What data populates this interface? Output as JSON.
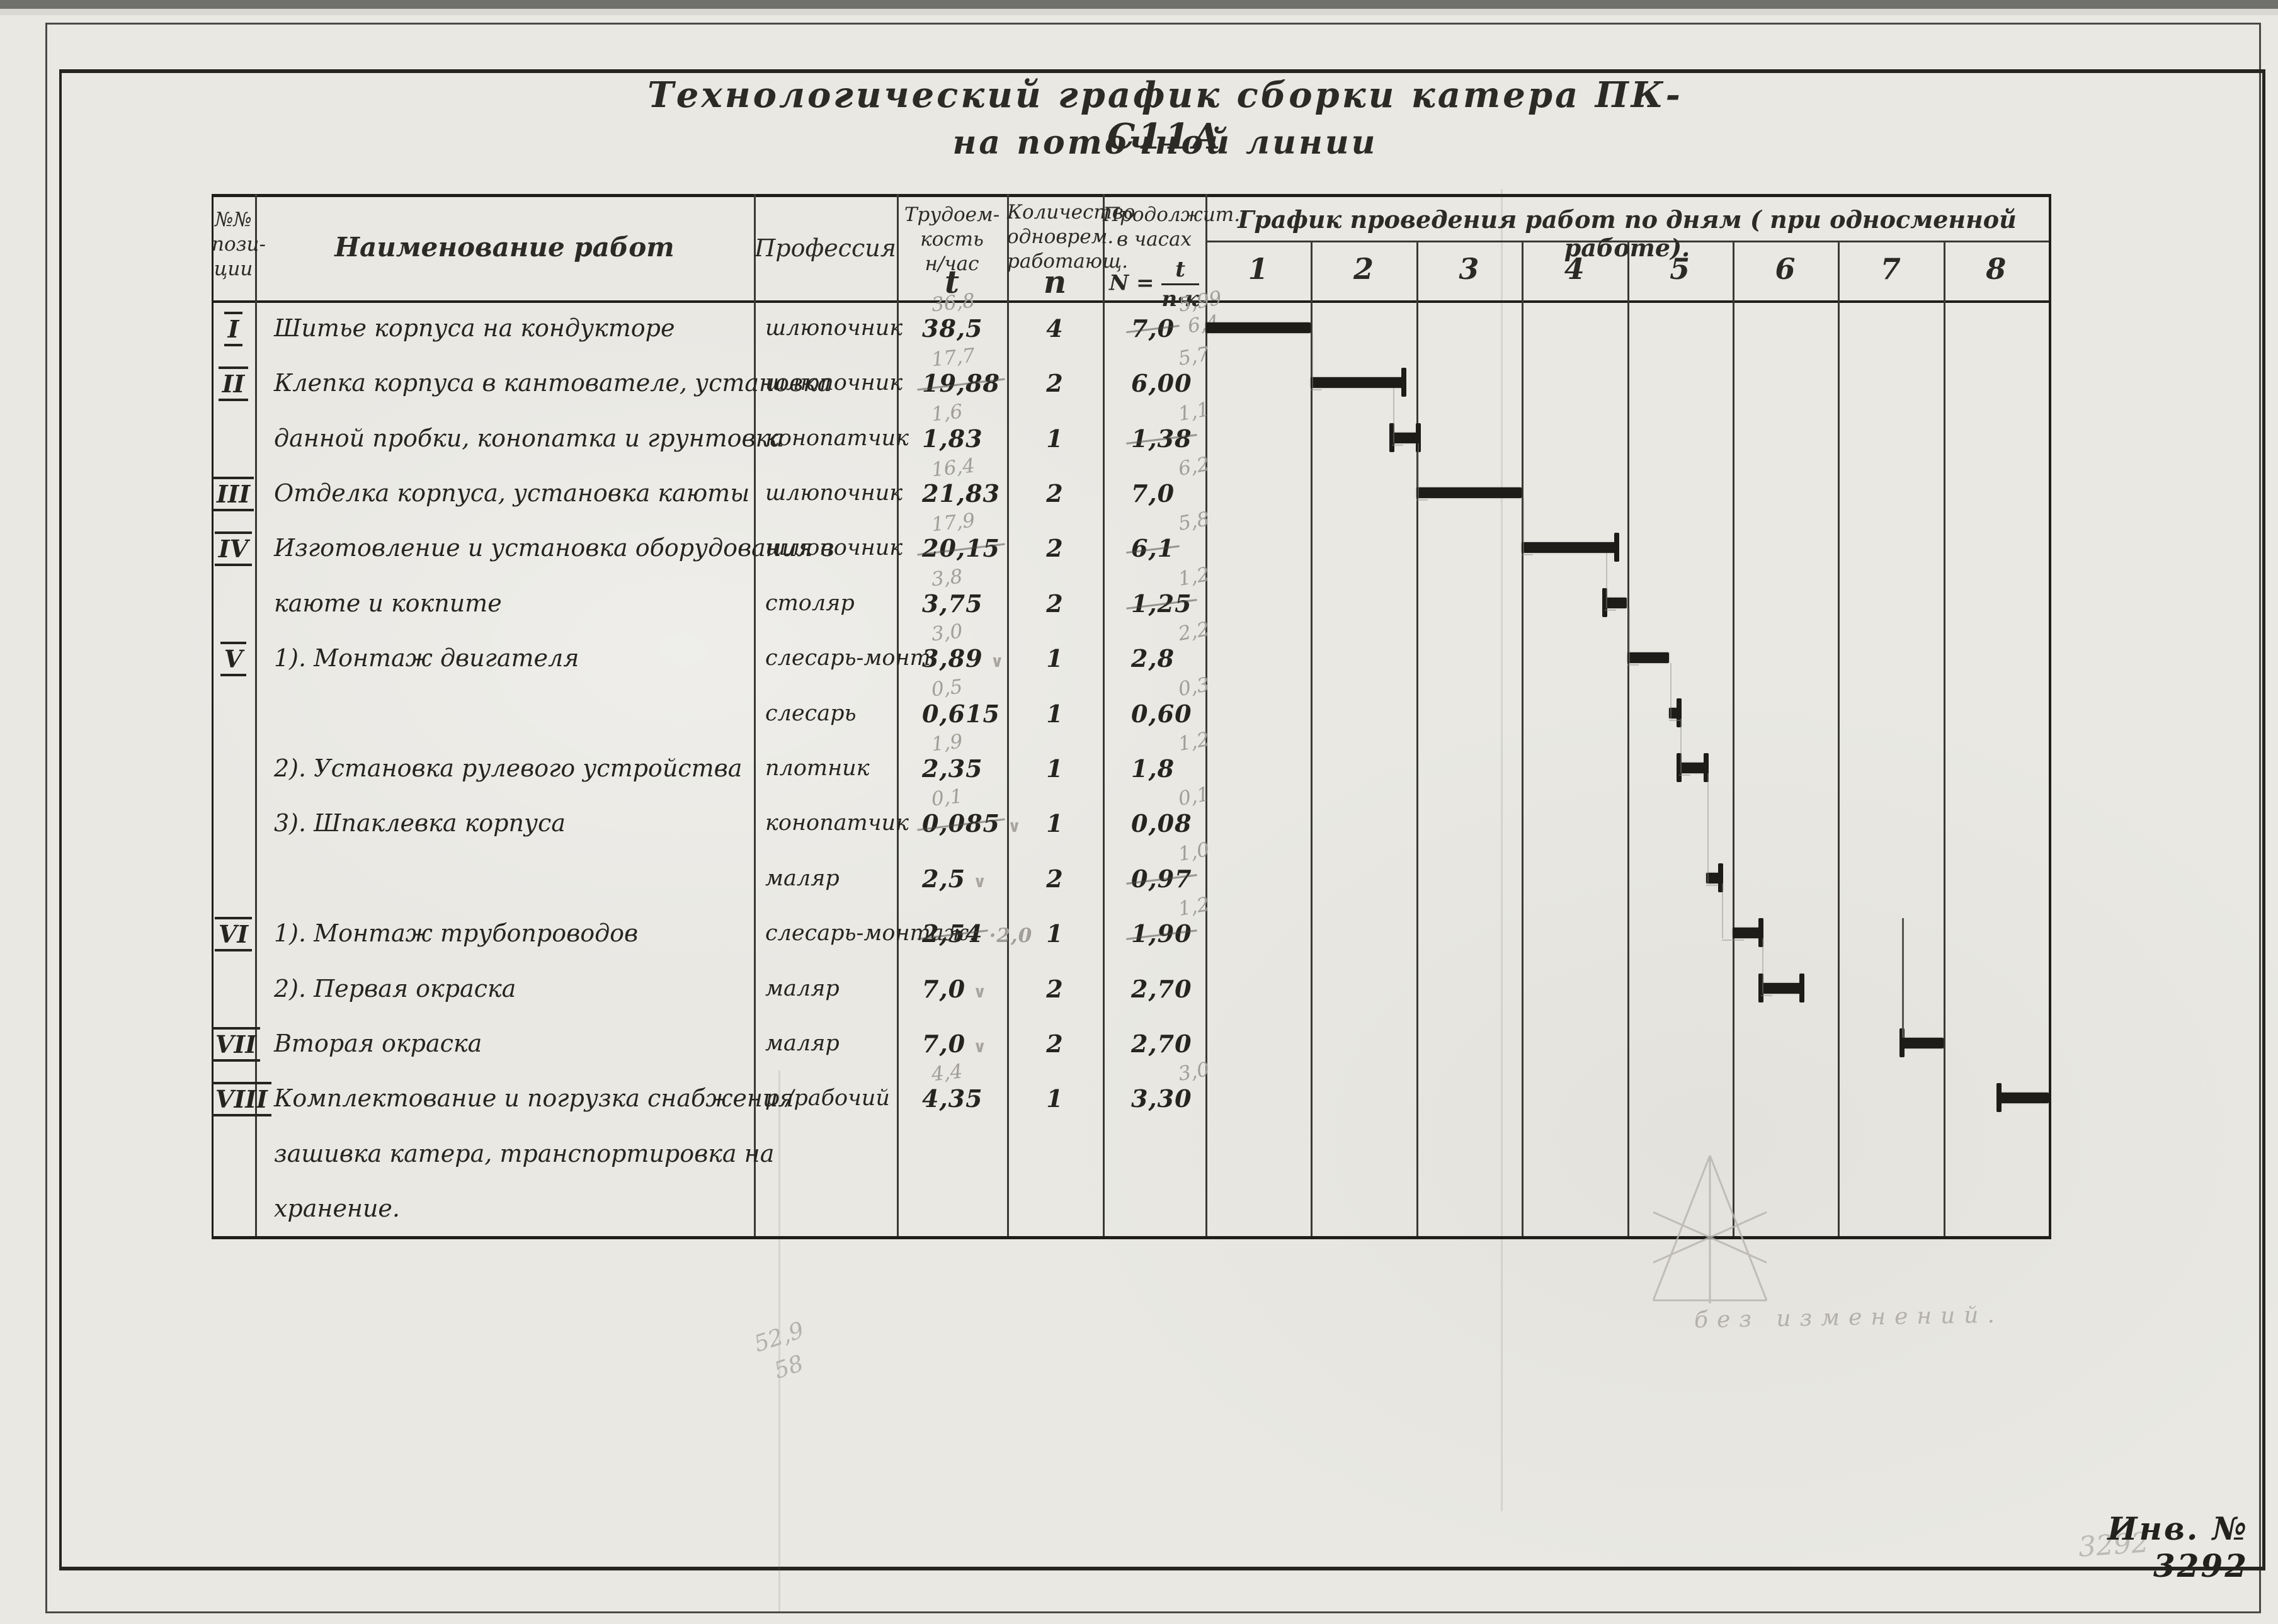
{
  "title_line1": "Технологический  график  сборки  катера  ПК-С11А",
  "title_line2": "на  поточной  линии",
  "footer": {
    "inv_label": "Инв. № 3292",
    "inv_pencil_ghost": "3292"
  },
  "pencil_notes": {
    "no_changes": "без  изменений.",
    "scribble_line1": "52,9",
    "scribble_line2": "58"
  },
  "table": {
    "headers": {
      "pos": "№№\nпози-\nции",
      "name": "Наименование работ",
      "profession": "Профессия",
      "labor": "Трудоем-\nкость\nн/час",
      "labor_symbol": "t",
      "workers": "Количество\nодноврем.\nработающ.",
      "workers_symbol": "n",
      "duration": "Продолжит.\nв часах",
      "formula_lhs": "N =",
      "formula_num": "t",
      "formula_den": "n·к"
    }
  },
  "chart_data": {
    "type": "gantt",
    "title": "График  проведения   работ  по  дням   ( при  односменной  работе).",
    "day_labels": [
      "1",
      "2",
      "3",
      "4",
      "5",
      "6",
      "7",
      "8"
    ],
    "hours_per_day": 7,
    "axis_range_days": [
      0,
      8
    ],
    "rows": [
      {
        "pos": "I",
        "name": "Шитье корпуса на кондукторе",
        "profession": "шлюпочник",
        "t": "38,5",
        "n": "4",
        "N": "7,0",
        "t_pencil": "36,8",
        "N_pencil": "5,99",
        "N_pencil2": "6,4",
        "N_struck": true,
        "bar": {
          "start_day": 0,
          "end_day": 1.0
        }
      },
      {
        "pos": "II",
        "name": "Клепка корпуса в кантователе, установка",
        "profession": "шлюпочник",
        "t": "19,88",
        "t_struck": true,
        "n": "2",
        "N": "6,00",
        "t_pencil": "17,7",
        "N_pencil": "5,7",
        "bar": {
          "start_day": 1.0,
          "end_day": 1.88,
          "cap_right": true
        }
      },
      {
        "pos": "",
        "name": "данной пробки, конопатка и грунтовка",
        "profession": "конопатчик",
        "t": "1,83",
        "n": "1",
        "N": "1,38",
        "N_struck": true,
        "t_pencil": "1,6",
        "N_pencil": "1,1",
        "bar": {
          "start_day": 1.77,
          "end_day": 2.02,
          "cap_left": true,
          "cap_right": true
        }
      },
      {
        "pos": "III",
        "name": "Отделка корпуса, установка каюты",
        "profession": "шлюпочник",
        "t": "21,83",
        "n": "2",
        "N": "7,0",
        "t_pencil": "16,4",
        "N_pencil": "6,2",
        "bar": {
          "start_day": 2.0,
          "end_day": 3.0
        }
      },
      {
        "pos": "IV",
        "name": "Изготовление и установка оборудования в",
        "profession": "шлюпочник",
        "t": "20,15",
        "t_struck": true,
        "n": "2",
        "N": "6,1",
        "N_struck": true,
        "t_pencil": "17,9",
        "N_pencil": "5,8",
        "bar": {
          "start_day": 3.0,
          "end_day": 3.9,
          "cap_right": true
        }
      },
      {
        "pos": "",
        "name": "каюте и кокпите",
        "profession": "столяр",
        "t": "3,75",
        "n": "2",
        "N": "1,25",
        "N_struck": true,
        "t_pencil": "3,8",
        "N_pencil": "1,2",
        "bar": {
          "start_day": 3.79,
          "end_day": 4.0,
          "cap_left": true
        }
      },
      {
        "pos": "V",
        "name": "1). Монтаж  двигателя",
        "profession": "слесарь-монт.",
        "t": "3,89",
        "t_check": true,
        "n": "1",
        "N": "2,8",
        "t_pencil": "3,0",
        "N_pencil": "2,2",
        "bar": {
          "start_day": 4.0,
          "end_day": 4.4
        }
      },
      {
        "pos": "",
        "name": "",
        "profession": "слесарь",
        "t": "0,615",
        "n": "1",
        "N": "0,60",
        "t_pencil": "0,5",
        "N_pencil": "0,3",
        "bar": {
          "start_day": 4.4,
          "end_day": 4.49,
          "cap_right": true
        }
      },
      {
        "pos": "",
        "name": "2). Установка рулевого  устройства",
        "profession": "плотник",
        "t": "2,35",
        "n": "1",
        "N": "1,8",
        "t_pencil": "1,9",
        "N_pencil": "1,2",
        "bar": {
          "start_day": 4.49,
          "end_day": 4.75,
          "cap_left": true,
          "cap_right": true
        }
      },
      {
        "pos": "",
        "name": "3). Шпаклевка  корпуса",
        "profession": "конопатчик",
        "t": "0,085",
        "t_struck": true,
        "t_check": true,
        "n": "1",
        "N": "0,08",
        "t_pencil": "0,1",
        "N_pencil": "0,1"
      },
      {
        "pos": "",
        "name": "",
        "profession": "маляр",
        "t": "2,5",
        "t_check": true,
        "n": "2",
        "N": "0,97",
        "N_struck": true,
        "N_pencil": "1,0",
        "bar": {
          "start_day": 4.75,
          "end_day": 4.89,
          "cap_right": true
        }
      },
      {
        "pos": "VI",
        "name": "1). Монтаж   трубопроводов",
        "profession": "слесарь-монтаж.",
        "t": "2,54",
        "t_struck": true,
        "t_pencil_inline": "2,0",
        "n": "1",
        "N": "1,90",
        "N_struck": true,
        "N_pencil": "1,2",
        "bar": {
          "start_day": 5.0,
          "end_day": 5.27,
          "cap_right": true
        }
      },
      {
        "pos": "",
        "name": "2). Первая    окраска",
        "profession": "маляр",
        "t": "7,0",
        "t_check": true,
        "n": "2",
        "N": "2,70",
        "bar": {
          "start_day": 5.27,
          "end_day": 5.66,
          "cap_left": true,
          "cap_right": true
        }
      },
      {
        "pos": "VII",
        "name": "Вторая    окраска",
        "profession": "маляр",
        "t": "7,0",
        "t_check": true,
        "n": "2",
        "N": "2,70",
        "bar": {
          "start_day": 6.61,
          "end_day": 7.0,
          "cap_left": true,
          "riser": true
        }
      },
      {
        "pos": "VIII",
        "name": "Комплектование  и  погрузка  снабжения",
        "profession": "р /рабочий",
        "t": "4,35",
        "n": "1",
        "N": "3,30",
        "t_pencil": "4,4",
        "N_pencil": "3,0",
        "bar": {
          "start_day": 7.53,
          "end_day": 8.0,
          "cap_left": true
        }
      },
      {
        "pos": "",
        "name": "зашивка  катера,  транспортировка  на",
        "profession": "",
        "t": "",
        "n": "",
        "N": ""
      },
      {
        "pos": "",
        "name": "хранение.",
        "profession": "",
        "t": "",
        "n": "",
        "N": ""
      }
    ]
  }
}
